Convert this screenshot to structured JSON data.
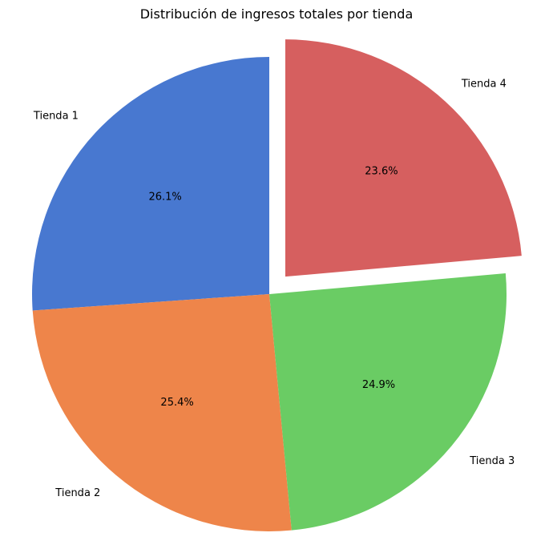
{
  "chart_data": {
    "type": "pie",
    "title": "Distribución de ingresos totales por tienda",
    "slices": [
      {
        "label": "Tienda 1",
        "value": 26.1,
        "pct_label": "26.1%",
        "color": "#4878d0",
        "explode": 0
      },
      {
        "label": "Tienda 2",
        "value": 25.4,
        "pct_label": "25.4%",
        "color": "#ee854a",
        "explode": 0
      },
      {
        "label": "Tienda 3",
        "value": 24.9,
        "pct_label": "24.9%",
        "color": "#6acc64",
        "explode": 0
      },
      {
        "label": "Tienda 4",
        "value": 23.6,
        "pct_label": "23.6%",
        "color": "#d65f5f",
        "explode": 0.1
      }
    ],
    "start_angle": 90,
    "direction": "counterclockwise",
    "legend": "none"
  }
}
